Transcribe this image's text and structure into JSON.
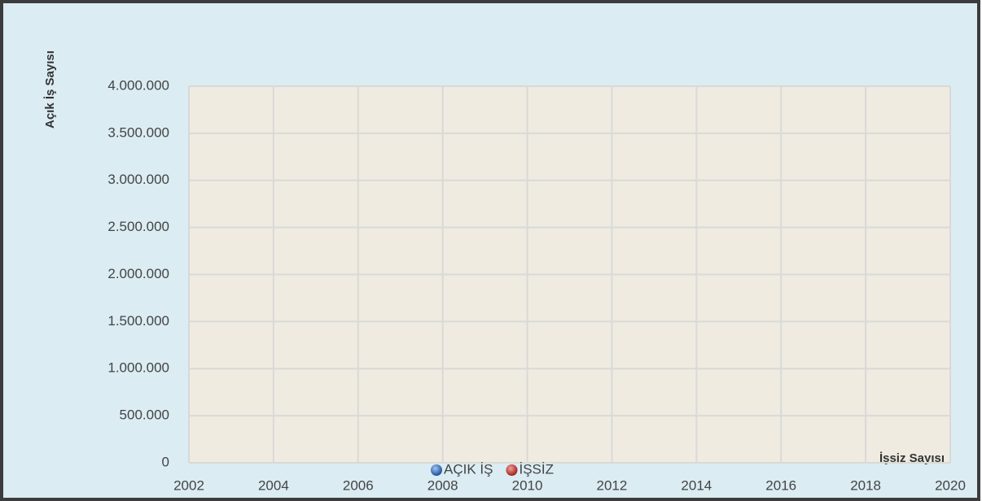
{
  "chart_data": {
    "type": "scatter",
    "y_label": "Açık İş Sayısı",
    "x_label": "İşsiz Sayısı",
    "x": [],
    "series": [
      {
        "name": "AÇIK İŞ",
        "color": "#2f6fc4",
        "values": []
      },
      {
        "name": "İŞSİZ",
        "color": "#c8302c",
        "values": []
      }
    ],
    "xlim": [
      2002,
      2020
    ],
    "xticks": [
      2002,
      2004,
      2006,
      2008,
      2010,
      2012,
      2014,
      2016,
      2018,
      2020
    ],
    "ylim": [
      0,
      4000000
    ],
    "yticks": [
      0,
      {
        "value": 500000,
        "label": "500.000"
      },
      {
        "value": 1000000,
        "label": "1.000.000"
      },
      {
        "value": 1500000,
        "label": "1.500.000"
      },
      {
        "value": 2000000,
        "label": "2.000.000"
      },
      {
        "value": 2500000,
        "label": "2.500.000"
      },
      {
        "value": 3000000,
        "label": "3.000.000"
      },
      {
        "value": 3500000,
        "label": "3.500.000"
      },
      {
        "value": 4000000,
        "label": "4.000.000"
      }
    ],
    "grid": true,
    "legend": "bottom"
  }
}
